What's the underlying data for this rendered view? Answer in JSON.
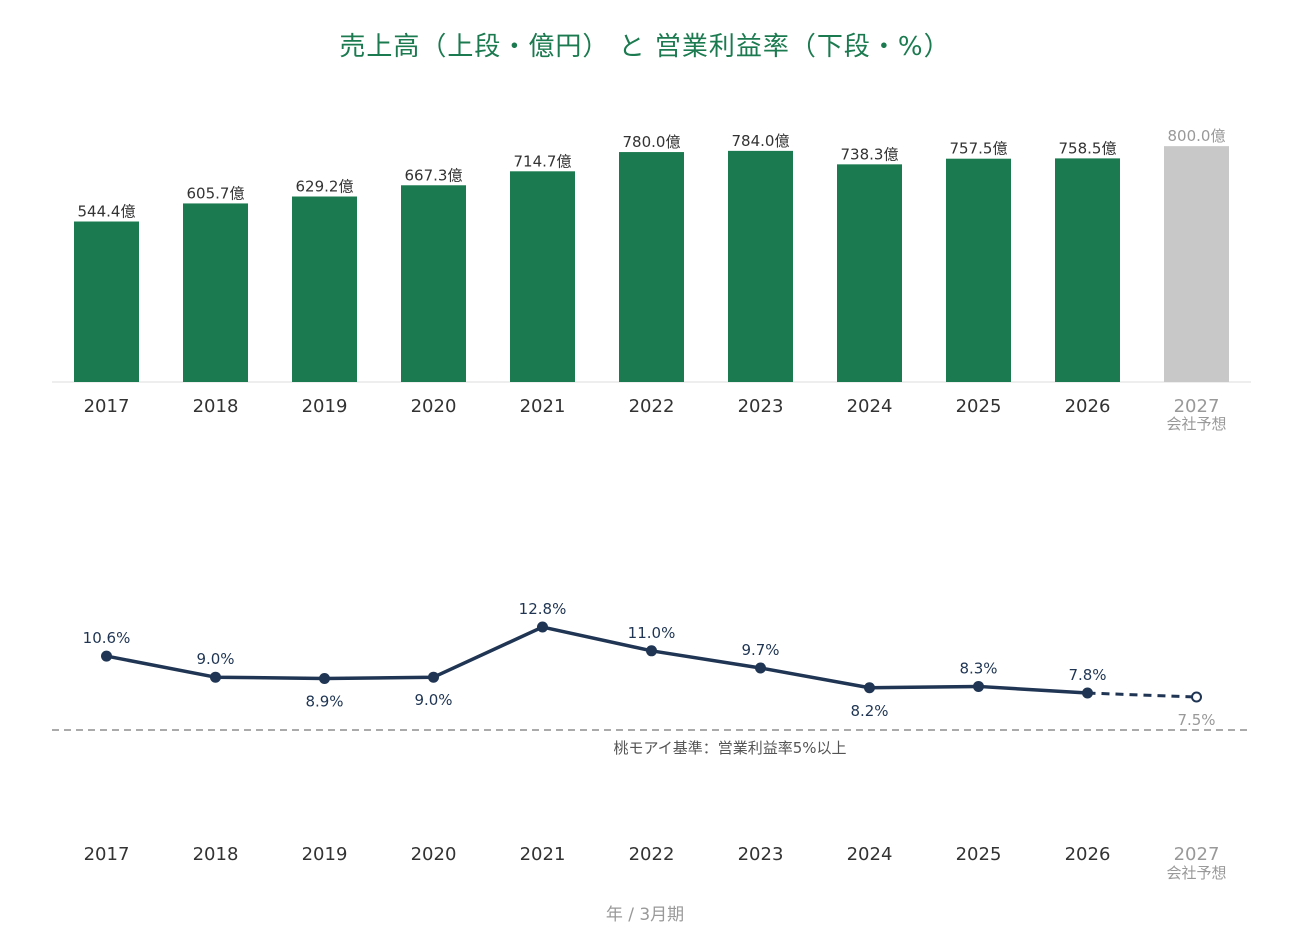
{
  "title": "売上高（上段・億円） と 営業利益率（下段・%）",
  "x_axis_title": "年 / 3月期",
  "forecast_label": "会社予想",
  "colors": {
    "bar": "#1b7a4f",
    "forecast_bar": "#c8c8c8",
    "line": "#1f3553",
    "text": "#333333",
    "muted": "#999999",
    "baseline": "#aaaaaa"
  },
  "chart_data": [
    {
      "type": "bar",
      "categories": [
        "2017",
        "2018",
        "2019",
        "2020",
        "2021",
        "2022",
        "2023",
        "2024",
        "2025",
        "2026",
        "2027"
      ],
      "values": [
        544.4,
        605.7,
        629.2,
        667.3,
        714.7,
        780.0,
        784.0,
        738.3,
        757.5,
        758.5,
        800.0
      ],
      "labels": [
        "544.4億",
        "605.7億",
        "629.2億",
        "667.3億",
        "714.7億",
        "780.0億",
        "784.0億",
        "738.3億",
        "757.5億",
        "758.5億",
        "800.0億"
      ],
      "forecast_index": 10,
      "ylabel": "億円"
    },
    {
      "type": "line",
      "categories": [
        "2017",
        "2018",
        "2019",
        "2020",
        "2021",
        "2022",
        "2023",
        "2024",
        "2025",
        "2026",
        "2027"
      ],
      "values": [
        10.6,
        9.0,
        8.9,
        9.0,
        12.8,
        11.0,
        9.7,
        8.2,
        8.3,
        7.8,
        7.5
      ],
      "labels": [
        "10.6%",
        "9.0%",
        "8.9%",
        "9.0%",
        "12.8%",
        "11.0%",
        "9.7%",
        "8.2%",
        "8.3%",
        "7.8%",
        "7.5%"
      ],
      "forecast_index": 10,
      "reference_line": {
        "value": 5,
        "label": "桃モアイ基準：営業利益率5%以上"
      }
    }
  ]
}
